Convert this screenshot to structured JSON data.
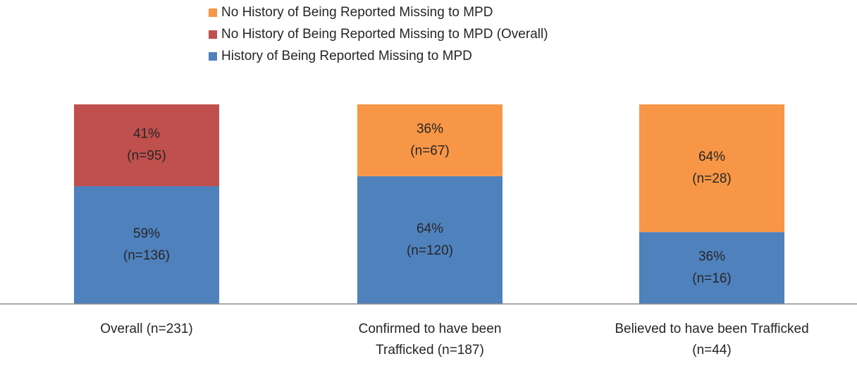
{
  "chart_data": {
    "type": "stacked_bar",
    "categories": [
      "Overall (n=231)",
      "Confirmed to have been\nTrafficked (n=187)",
      "Believed to have been Trafficked\n(n=44)"
    ],
    "series": [
      {
        "name": "History of Being Reported Missing to MPD",
        "color": "#4f81bd",
        "values": [
          59,
          64,
          36
        ],
        "value_labels": [
          [
            "59%",
            "(n=136)"
          ],
          [
            "64%",
            "(n=120)"
          ],
          [
            "36%",
            "(n=16)"
          ]
        ]
      },
      {
        "name": "No History of Being Reported Missing to MPD (Overall)",
        "color": "#c0504d",
        "values": [
          41,
          null,
          null
        ],
        "value_labels": [
          [
            "41%",
            "(n=95)"
          ],
          null,
          null
        ]
      },
      {
        "name": "No History of Being Reported Missing to MPD",
        "color": "#f79646",
        "values": [
          null,
          36,
          64
        ],
        "value_labels": [
          null,
          [
            "36%",
            "(n=67)"
          ],
          [
            "64%",
            "(n=28)"
          ]
        ]
      }
    ],
    "ylim": [
      0,
      100
    ]
  }
}
